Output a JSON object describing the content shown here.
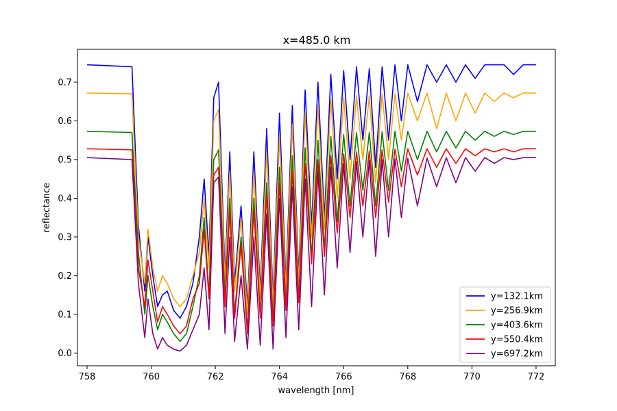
{
  "chart_data": {
    "type": "line",
    "title": "x=485.0 km",
    "xlabel": "wavelength [nm]",
    "ylabel": "reflectance",
    "xlim": [
      757.7,
      772.6
    ],
    "ylim": [
      -0.033,
      0.785
    ],
    "xticks": [
      758,
      760,
      762,
      764,
      766,
      768,
      770,
      772
    ],
    "yticks": [
      0.0,
      0.1,
      0.2,
      0.3,
      0.4,
      0.5,
      0.6,
      0.7
    ],
    "grid": false,
    "legend_position": "lower-right",
    "x": [
      758.0,
      759.4,
      759.6,
      759.8,
      759.9,
      760.05,
      760.2,
      760.35,
      760.5,
      760.7,
      760.9,
      761.1,
      761.3,
      761.5,
      761.65,
      761.8,
      761.95,
      762.1,
      762.3,
      762.45,
      762.6,
      762.8,
      763.0,
      763.2,
      763.4,
      763.6,
      763.8,
      764.0,
      764.2,
      764.4,
      764.6,
      764.8,
      765.0,
      765.2,
      765.4,
      765.6,
      765.8,
      766.0,
      766.2,
      766.4,
      766.6,
      766.8,
      767.0,
      767.2,
      767.4,
      767.6,
      767.8,
      768.0,
      768.3,
      768.6,
      768.9,
      769.2,
      769.5,
      769.8,
      770.1,
      770.4,
      770.7,
      771.0,
      771.3,
      771.6,
      772.0
    ],
    "series": [
      {
        "name": "y=132.1km",
        "color": "#0000ff",
        "values": [
          0.745,
          0.74,
          0.33,
          0.16,
          0.3,
          0.2,
          0.12,
          0.15,
          0.16,
          0.11,
          0.09,
          0.12,
          0.18,
          0.3,
          0.45,
          0.25,
          0.66,
          0.7,
          0.2,
          0.52,
          0.18,
          0.38,
          0.12,
          0.52,
          0.16,
          0.58,
          0.14,
          0.62,
          0.18,
          0.64,
          0.2,
          0.68,
          0.33,
          0.7,
          0.35,
          0.72,
          0.45,
          0.73,
          0.5,
          0.74,
          0.55,
          0.735,
          0.48,
          0.74,
          0.55,
          0.745,
          0.6,
          0.745,
          0.65,
          0.745,
          0.7,
          0.745,
          0.7,
          0.745,
          0.71,
          0.745,
          0.745,
          0.745,
          0.72,
          0.745,
          0.745
        ]
      },
      {
        "name": "y=256.9km",
        "color": "#ffa500",
        "values": [
          0.672,
          0.67,
          0.3,
          0.18,
          0.32,
          0.22,
          0.16,
          0.2,
          0.18,
          0.14,
          0.12,
          0.14,
          0.2,
          0.26,
          0.4,
          0.22,
          0.6,
          0.63,
          0.18,
          0.47,
          0.16,
          0.35,
          0.1,
          0.47,
          0.14,
          0.52,
          0.12,
          0.56,
          0.16,
          0.59,
          0.18,
          0.62,
          0.3,
          0.64,
          0.32,
          0.655,
          0.4,
          0.66,
          0.45,
          0.665,
          0.5,
          0.665,
          0.44,
          0.67,
          0.5,
          0.67,
          0.55,
          0.672,
          0.6,
          0.672,
          0.58,
          0.672,
          0.6,
          0.672,
          0.62,
          0.672,
          0.65,
          0.672,
          0.66,
          0.672,
          0.672
        ]
      },
      {
        "name": "y=403.6km",
        "color": "#008000",
        "values": [
          0.573,
          0.57,
          0.26,
          0.1,
          0.2,
          0.12,
          0.06,
          0.1,
          0.08,
          0.05,
          0.03,
          0.05,
          0.12,
          0.2,
          0.35,
          0.15,
          0.5,
          0.525,
          0.14,
          0.4,
          0.1,
          0.3,
          0.06,
          0.4,
          0.1,
          0.44,
          0.08,
          0.48,
          0.12,
          0.51,
          0.14,
          0.53,
          0.25,
          0.55,
          0.27,
          0.56,
          0.34,
          0.565,
          0.38,
          0.57,
          0.42,
          0.57,
          0.38,
          0.572,
          0.42,
          0.573,
          0.47,
          0.573,
          0.5,
          0.573,
          0.52,
          0.573,
          0.53,
          0.573,
          0.55,
          0.573,
          0.56,
          0.573,
          0.565,
          0.573,
          0.573
        ]
      },
      {
        "name": "y=550.4km",
        "color": "#ff0000",
        "values": [
          0.528,
          0.525,
          0.22,
          0.12,
          0.24,
          0.16,
          0.08,
          0.12,
          0.1,
          0.07,
          0.05,
          0.07,
          0.14,
          0.18,
          0.32,
          0.14,
          0.46,
          0.48,
          0.12,
          0.37,
          0.09,
          0.28,
          0.05,
          0.37,
          0.09,
          0.41,
          0.07,
          0.44,
          0.11,
          0.47,
          0.13,
          0.49,
          0.23,
          0.5,
          0.25,
          0.51,
          0.31,
          0.515,
          0.35,
          0.52,
          0.38,
          0.522,
          0.35,
          0.525,
          0.39,
          0.527,
          0.43,
          0.528,
          0.46,
          0.528,
          0.48,
          0.528,
          0.49,
          0.528,
          0.51,
          0.528,
          0.52,
          0.528,
          0.52,
          0.528,
          0.528
        ]
      },
      {
        "name": "y=697.2km",
        "color": "#800080",
        "values": [
          0.505,
          0.5,
          0.18,
          0.04,
          0.14,
          0.05,
          0.01,
          0.04,
          0.02,
          0.01,
          0.005,
          0.02,
          0.06,
          0.1,
          0.22,
          0.06,
          0.44,
          0.455,
          0.05,
          0.3,
          0.03,
          0.2,
          0.01,
          0.3,
          0.02,
          0.36,
          0.01,
          0.4,
          0.04,
          0.43,
          0.06,
          0.45,
          0.12,
          0.47,
          0.15,
          0.48,
          0.22,
          0.49,
          0.26,
          0.495,
          0.3,
          0.498,
          0.25,
          0.5,
          0.3,
          0.502,
          0.35,
          0.503,
          0.38,
          0.504,
          0.43,
          0.505,
          0.44,
          0.505,
          0.47,
          0.505,
          0.49,
          0.505,
          0.5,
          0.505,
          0.505
        ]
      }
    ]
  }
}
